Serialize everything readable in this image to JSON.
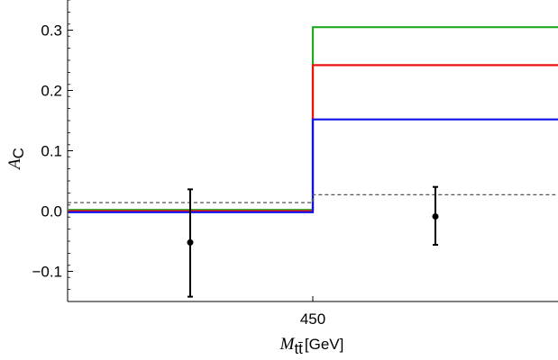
{
  "chart_data": {
    "type": "line",
    "title": "",
    "xlabel": {
      "symbol": "M",
      "subscript": "tt̄",
      "unit": "[GeV]"
    },
    "ylabel": {
      "symbol": "A",
      "subscript": "C"
    },
    "xlim": [
      350,
      550
    ],
    "ylim": [
      -0.15,
      0.35
    ],
    "x_ticks": [
      {
        "value": 450,
        "label": "450"
      }
    ],
    "y_ticks": [
      {
        "value": -0.1,
        "label": "−0.1"
      },
      {
        "value": 0.0,
        "label": "0.0"
      },
      {
        "value": 0.1,
        "label": "0.1"
      },
      {
        "value": 0.2,
        "label": "0.2"
      },
      {
        "value": 0.3,
        "label": "0.3"
      }
    ],
    "grid": false,
    "series": [
      {
        "color": "#22aa22",
        "style": "step",
        "x": [
          350,
          450,
          450,
          550
        ],
        "y": [
          0.002,
          0.002,
          0.305,
          0.305
        ]
      },
      {
        "color": "#ee1111",
        "style": "step",
        "x": [
          350,
          450,
          450,
          550
        ],
        "y": [
          0.0,
          0.0,
          0.242,
          0.242
        ]
      },
      {
        "color": "#1111ee",
        "style": "step",
        "x": [
          350,
          450,
          450,
          550
        ],
        "y": [
          -0.002,
          -0.002,
          0.152,
          0.152
        ]
      },
      {
        "color": "#555555",
        "style": "dashed-step",
        "x": [
          350,
          450,
          450,
          550
        ],
        "y": [
          0.014,
          0.014,
          0.027,
          0.027
        ]
      }
    ],
    "points": [
      {
        "x": 400,
        "y": -0.052,
        "err_low": 0.09,
        "err_high": 0.088,
        "color": "#000000"
      },
      {
        "x": 500,
        "y": -0.009,
        "err_low": 0.047,
        "err_high": 0.049,
        "color": "#000000"
      }
    ]
  }
}
